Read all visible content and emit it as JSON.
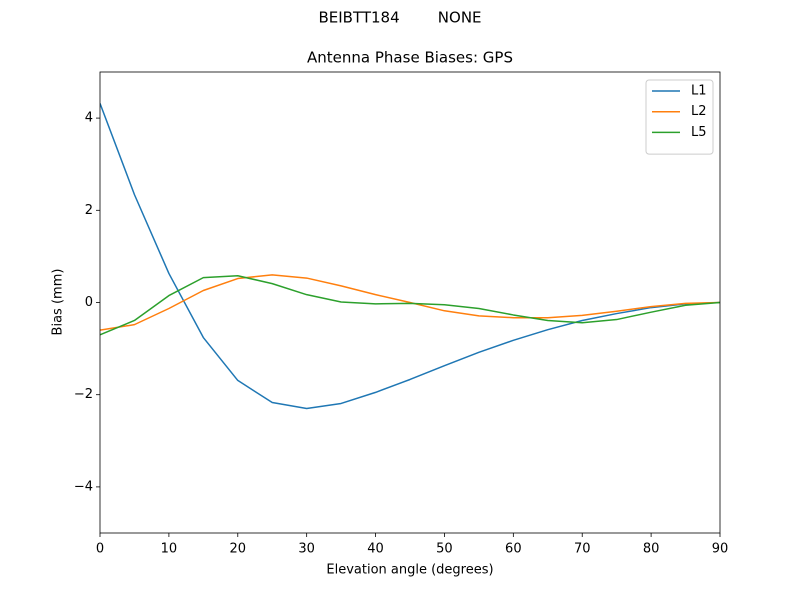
{
  "chart_data": {
    "type": "line",
    "suptitle": "BEIBTT184        NONE",
    "title": "Antenna Phase Biases: GPS",
    "xlabel": "Elevation angle (degrees)",
    "ylabel": "Bias (mm)",
    "x": [
      0,
      5,
      10,
      15,
      20,
      25,
      30,
      35,
      40,
      45,
      50,
      55,
      60,
      65,
      70,
      75,
      80,
      85,
      90
    ],
    "series": [
      {
        "name": "L1",
        "color": "#1f77b4",
        "values": [
          4.32,
          2.34,
          0.63,
          -0.76,
          -1.69,
          -2.17,
          -2.3,
          -2.19,
          -1.95,
          -1.67,
          -1.37,
          -1.08,
          -0.82,
          -0.59,
          -0.39,
          -0.24,
          -0.11,
          -0.03,
          0
        ]
      },
      {
        "name": "L2",
        "color": "#ff7f0e",
        "values": [
          -0.6,
          -0.48,
          -0.13,
          0.26,
          0.52,
          0.6,
          0.53,
          0.36,
          0.17,
          0,
          -0.18,
          -0.29,
          -0.33,
          -0.33,
          -0.28,
          -0.19,
          -0.09,
          -0.02,
          0
        ]
      },
      {
        "name": "L5",
        "color": "#2ca02c",
        "values": [
          -0.7,
          -0.39,
          0.15,
          0.54,
          0.58,
          0.41,
          0.17,
          0.01,
          -0.03,
          -0.02,
          -0.05,
          -0.13,
          -0.27,
          -0.39,
          -0.44,
          -0.37,
          -0.21,
          -0.06,
          0
        ]
      }
    ],
    "xlim": [
      0,
      90
    ],
    "xticks": [
      0,
      10,
      20,
      30,
      40,
      50,
      60,
      70,
      80,
      90
    ],
    "ylim": [
      -5,
      5
    ],
    "yticks": [
      {
        "value": -4,
        "label": "−4"
      },
      {
        "value": -2,
        "label": "−2"
      },
      0,
      2,
      4
    ],
    "grid": false,
    "legend": "upper-right"
  }
}
